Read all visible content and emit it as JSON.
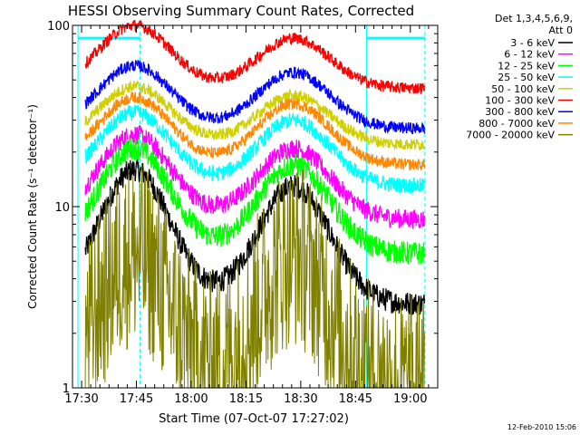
{
  "chart_data": {
    "type": "line",
    "title": "HESSI Observing Summary Count Rates, Corrected",
    "xlabel": "Start Time (07-Oct-07 17:27:02)",
    "ylabel": "Corrected Count Rate (s⁻¹ detector⁻¹)",
    "y_scale": "log",
    "ylim": [
      1,
      100
    ],
    "xlim_minutes": [
      -2.5,
      97.5
    ],
    "x_ticks": [
      "17:30",
      "17:45",
      "18:00",
      "18:15",
      "18:30",
      "18:45",
      "19:00"
    ],
    "x_tick_minutes": [
      0,
      15,
      30,
      45,
      60,
      75,
      90
    ],
    "y_ticks": [
      "1",
      "10",
      "100"
    ],
    "y_tick_values": [
      1,
      10,
      100
    ],
    "grid": false,
    "legend_header": [
      "Det 1,3,4,5,6,9,",
      "Att 0"
    ],
    "legend_placement": "right",
    "footer_date": "12-Feb-2010 15:06",
    "attenuator_bars": [
      {
        "from_minute": -1,
        "to_minute": 16,
        "level": 85
      },
      {
        "from_minute": 78,
        "to_minute": 94,
        "level": 85
      }
    ],
    "series": [
      {
        "name": "3 - 6 keV",
        "color": "#000000",
        "base": 2.9,
        "peak1": 16,
        "peak2": 13,
        "noise": 0.06,
        "x_start": 1.0
      },
      {
        "name": "6 - 12 keV",
        "color": "#ff00ff",
        "base": 8.5,
        "peak1": 25,
        "peak2": 21,
        "noise": 0.05,
        "x_start": 1.0
      },
      {
        "name": "12 - 25 keV",
        "color": "#00ff00",
        "base": 5.5,
        "peak1": 21,
        "peak2": 17,
        "noise": 0.06,
        "x_start": 1.0
      },
      {
        "name": "25 - 50 keV",
        "color": "#00ffff",
        "base": 13,
        "peak1": 33,
        "peak2": 30,
        "noise": 0.04,
        "x_start": 1.0
      },
      {
        "name": "50 - 100 keV",
        "color": "#d0d000",
        "base": 22,
        "peak1": 46,
        "peak2": 41,
        "noise": 0.03,
        "x_start": 1.0
      },
      {
        "name": "100 - 300 keV",
        "color": "#ff0000",
        "base": 45,
        "peak1": 100,
        "peak2": 85,
        "noise": 0.03,
        "x_start": 1.0
      },
      {
        "name": "300 - 800 keV",
        "color": "#0000ff",
        "base": 27,
        "peak1": 60,
        "peak2": 55,
        "noise": 0.03,
        "x_start": 1.0
      },
      {
        "name": "800 - 7000 keV",
        "color": "#ff8800",
        "base": 17,
        "peak1": 40,
        "peak2": 37,
        "noise": 0.03,
        "x_start": 1.0
      },
      {
        "name": "7000 - 20000 keV",
        "color": "#808000",
        "base": 1.0,
        "peak1": 5.5,
        "peak2": 5.5,
        "noise": 0.3,
        "x_start": 1.0
      }
    ],
    "peak_minutes": [
      14.5,
      58.0
    ],
    "peak_width_minutes": 14
  }
}
